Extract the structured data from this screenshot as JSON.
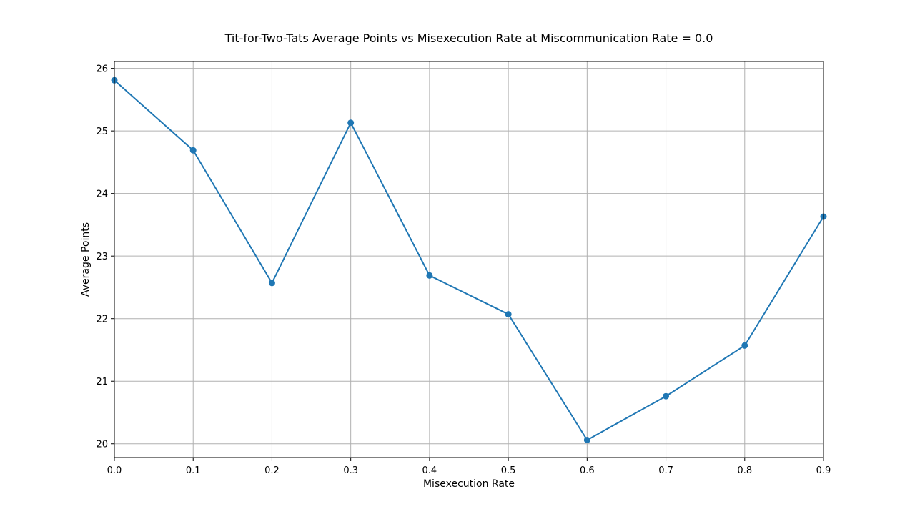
{
  "chart_data": {
    "type": "line",
    "title": "Tit-for-Two-Tats Average Points vs Misexecution Rate at Miscommunication Rate = 0.0",
    "xlabel": "Misexecution Rate",
    "ylabel": "Average Points",
    "x": [
      0.0,
      0.1,
      0.2,
      0.3,
      0.4,
      0.5,
      0.6,
      0.7,
      0.8,
      0.9
    ],
    "xtick_labels": [
      "0.0",
      "0.1",
      "0.2",
      "0.3",
      "0.4",
      "0.5",
      "0.6",
      "0.7",
      "0.8",
      "0.9"
    ],
    "ytick_labels": [
      "20",
      "21",
      "22",
      "23",
      "24",
      "25",
      "26"
    ],
    "yticks": [
      20,
      21,
      22,
      23,
      24,
      25,
      26
    ],
    "series": [
      {
        "values": [
          25.81,
          24.69,
          22.57,
          25.13,
          22.69,
          22.07,
          20.06,
          20.76,
          21.57,
          23.63
        ],
        "color": "#1f77b4",
        "marker": "circle"
      }
    ],
    "xlim": [
      0.0,
      0.9
    ],
    "ylim": [
      19.78,
      26.11
    ],
    "grid": true,
    "legend": "none"
  }
}
